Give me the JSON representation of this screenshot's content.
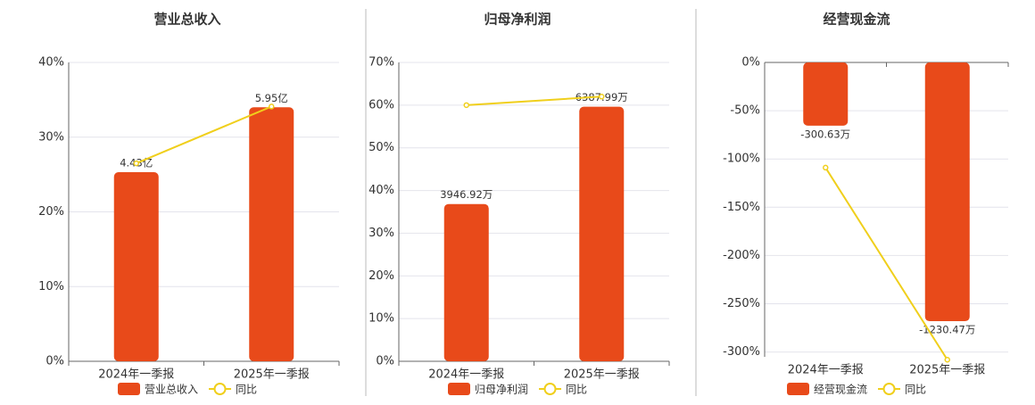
{
  "chart_data": [
    {
      "type": "bar",
      "title": "营业总收入",
      "categories": [
        "2024年一季报",
        "2025年一季报"
      ],
      "series": [
        {
          "name": "营业总收入",
          "color": "#e84a1a",
          "axis": "y2",
          "values": [
            4.43,
            5.95
          ],
          "value_labels": [
            "4.43亿",
            "5.95亿"
          ]
        },
        {
          "name": "同比",
          "color": "#f0cf1c",
          "values": [
            26.5,
            34.1
          ]
        }
      ],
      "ylim": [
        0,
        40
      ],
      "yticks": [
        {
          "value": 0,
          "label": "0%"
        },
        {
          "value": 10,
          "label": "10%"
        },
        {
          "value": 20,
          "label": "20%"
        },
        {
          "value": 30,
          "label": "30%"
        },
        {
          "value": 40,
          "label": "40%"
        }
      ],
      "y2lim": [
        0,
        7
      ],
      "grid": true
    },
    {
      "type": "bar",
      "title": "归母净利润",
      "categories": [
        "2024年一季报",
        "2025年一季报"
      ],
      "series": [
        {
          "name": "归母净利润",
          "color": "#e84a1a",
          "axis": "y2",
          "values": [
            3946.92,
            6387.99
          ],
          "value_labels": [
            "3946.92万",
            "6387.99万"
          ]
        },
        {
          "name": "同比",
          "color": "#f0cf1c",
          "values": [
            60,
            62
          ]
        }
      ],
      "ylim": [
        0,
        70
      ],
      "yticks": [
        {
          "value": 0,
          "label": "0%"
        },
        {
          "value": 10,
          "label": "10%"
        },
        {
          "value": 20,
          "label": "20%"
        },
        {
          "value": 30,
          "label": "30%"
        },
        {
          "value": 40,
          "label": "40%"
        },
        {
          "value": 50,
          "label": "50%"
        },
        {
          "value": 60,
          "label": "60%"
        },
        {
          "value": 70,
          "label": "70%"
        }
      ],
      "y2lim": [
        0,
        7500
      ],
      "grid": true
    },
    {
      "type": "bar",
      "title": "经营现金流",
      "categories": [
        "2024年一季报",
        "2025年一季报"
      ],
      "series": [
        {
          "name": "经营现金流",
          "color": "#e84a1a",
          "axis": "y2",
          "values": [
            -300.63,
            -1230.47
          ],
          "value_labels": [
            "-300.63万",
            "-1230.47万"
          ]
        },
        {
          "name": "同比",
          "color": "#f0cf1c",
          "values": [
            -109,
            -308
          ]
        }
      ],
      "ylim": [
        -305,
        0
      ],
      "yticks": [
        {
          "value": 0,
          "label": "0%"
        },
        {
          "value": -50,
          "label": "-50%"
        },
        {
          "value": -100,
          "label": "-100%"
        },
        {
          "value": -150,
          "label": "-150%"
        },
        {
          "value": -200,
          "label": "-200%"
        },
        {
          "value": -250,
          "label": "-250%"
        },
        {
          "value": -300,
          "label": "-300%"
        }
      ],
      "y2lim": [
        -1400,
        0
      ],
      "grid": true
    }
  ]
}
